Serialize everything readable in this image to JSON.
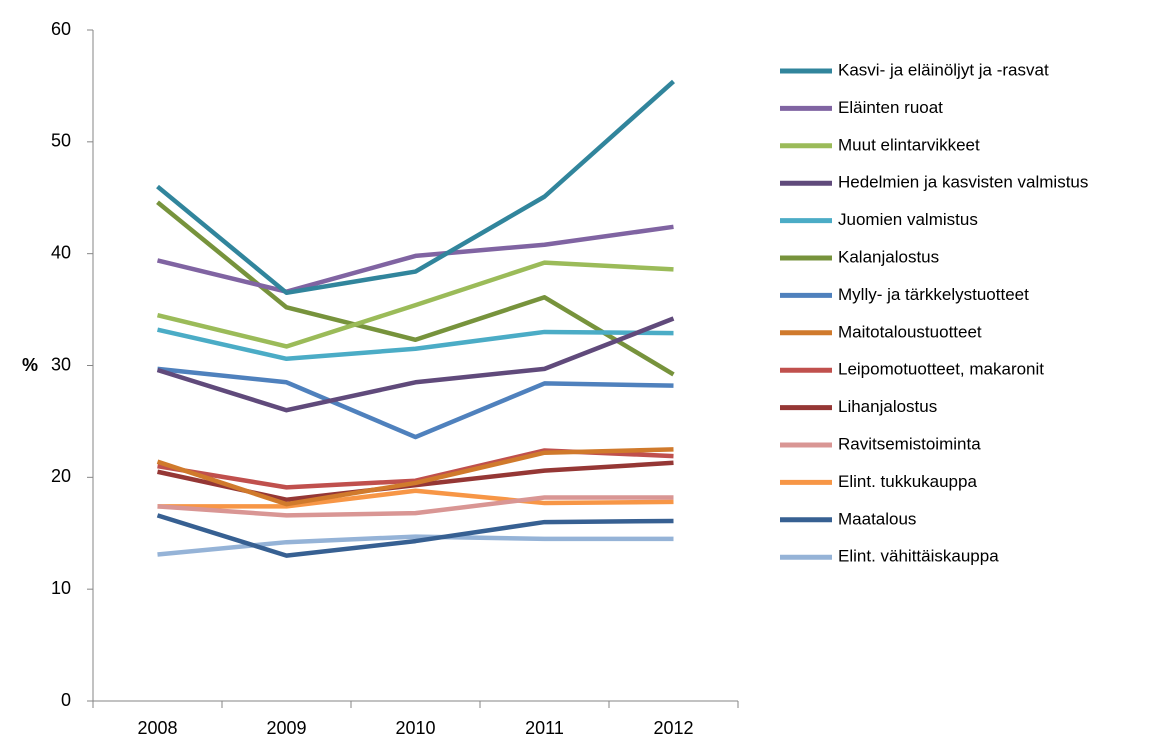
{
  "chart_data": {
    "type": "line",
    "y_label": "%",
    "categories": [
      "2008",
      "2009",
      "2010",
      "2011",
      "2012"
    ],
    "ylim": [
      0,
      60
    ],
    "yticks": [
      0,
      10,
      20,
      30,
      40,
      50,
      60
    ],
    "series": [
      {
        "name": "Kasvi- ja eläinöljyt ja -rasvat",
        "color": "#31859c",
        "values": [
          46.0,
          36.5,
          38.4,
          45.1,
          55.4
        ]
      },
      {
        "name": "Eläinten ruoat",
        "color": "#8064a2",
        "values": [
          39.4,
          36.6,
          39.8,
          40.8,
          42.4
        ]
      },
      {
        "name": "Muut elintarvikkeet",
        "color": "#9bbb59",
        "values": [
          34.5,
          31.7,
          35.4,
          39.2,
          38.6
        ]
      },
      {
        "name": "Hedelmien ja kasvisten valmistus",
        "color": "#604a7b",
        "values": [
          29.6,
          26.0,
          28.5,
          29.7,
          34.2
        ]
      },
      {
        "name": "Juomien valmistus",
        "color": "#4bacc6",
        "values": [
          33.2,
          30.6,
          31.5,
          33.0,
          32.9
        ]
      },
      {
        "name": "Kalanjalostus",
        "color": "#77933c",
        "values": [
          44.6,
          35.2,
          32.3,
          36.1,
          29.2
        ]
      },
      {
        "name": "Mylly- ja tärkkelystuotteet",
        "color": "#4f81bd",
        "values": [
          29.7,
          28.5,
          23.6,
          28.4,
          28.2
        ]
      },
      {
        "name": "Maitotaloustuotteet",
        "color": "#d07a2c",
        "values": [
          21.4,
          17.6,
          19.5,
          22.2,
          22.5
        ]
      },
      {
        "name": "Leipomotuotteet, makaronit",
        "color": "#c0504d",
        "values": [
          21.0,
          19.1,
          19.7,
          22.4,
          21.9
        ]
      },
      {
        "name": "Lihanjalostus",
        "color": "#953735",
        "values": [
          20.5,
          18.0,
          19.3,
          20.6,
          21.3
        ]
      },
      {
        "name": "Ravitsemistoiminta",
        "color": "#d99694",
        "values": [
          17.4,
          16.6,
          16.8,
          18.2,
          18.2
        ]
      },
      {
        "name": "Elint. tukkukauppa",
        "color": "#f79646",
        "values": [
          17.4,
          17.4,
          18.8,
          17.7,
          17.8
        ]
      },
      {
        "name": "Maatalous",
        "color": "#376092",
        "values": [
          16.6,
          13.0,
          14.3,
          16.0,
          16.1
        ]
      },
      {
        "name": "Elint. vähittäiskauppa",
        "color": "#95b3d7",
        "values": [
          13.1,
          14.2,
          14.7,
          14.5,
          14.5
        ]
      }
    ]
  }
}
